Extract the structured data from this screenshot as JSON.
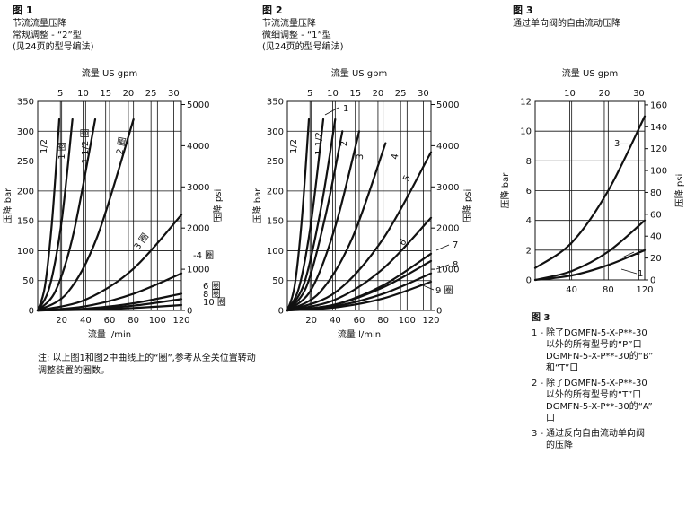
{
  "fig1": {
    "heading": "图 1",
    "lines": [
      "节流流量压降",
      "常规调整 - “2”型",
      "(见24页的型号编法)"
    ]
  },
  "fig2": {
    "heading": "图 2",
    "lines": [
      "节流流量压降",
      "微细调整 - “1”型",
      "(见24页的型号编法)"
    ]
  },
  "fig3": {
    "heading": "图 3",
    "lines": [
      "通过单向阀的自由流动压降"
    ]
  },
  "footnote": [
    "注: 以上图1和图2中曲线上的“圈”,参考从全关位置转动",
    "调整装置的圈数。"
  ],
  "fig3_legend": {
    "title": "图 3",
    "items": [
      {
        "num": "1 -",
        "lines": [
          "除了DGMFN-5-X-P**-30",
          "以外的所有型号的“P”口",
          "DGMFN-5-X-P**-30的“B”",
          "和“T”口"
        ]
      },
      {
        "num": "2 -",
        "lines": [
          "除了DGMFN-5-X-P**-30",
          "以外的所有型号的“T”口",
          "DGMFN-5-X-P**-30的“A”",
          "口"
        ]
      },
      {
        "num": "3 -",
        "lines": [
          "通过反向自由流动单向阀",
          "的压降"
        ]
      }
    ]
  },
  "chart_data": [
    {
      "type": "line",
      "xlabel": "流量 l/min",
      "x2label": "流量 US gpm",
      "ylabel": "压降 bar",
      "y2label": "压降 psi",
      "xlim": [
        0,
        120
      ],
      "ylim": [
        0,
        350
      ],
      "xticks": [
        "20",
        "40",
        "60",
        "80",
        "100",
        "120"
      ],
      "x2ticks": [
        "5",
        "10",
        "15",
        "20",
        "25",
        "30"
      ],
      "yticks": [
        "0",
        "50",
        "100",
        "150",
        "200",
        "250",
        "300",
        "350"
      ],
      "y2ticks": [
        "0",
        "1000",
        "2000",
        "3000",
        "4000",
        "5000"
      ],
      "grid": true,
      "series": [
        {
          "name": "1/2 圈",
          "x": [
            0,
            6,
            12,
            18
          ],
          "y": [
            0,
            40,
            150,
            320
          ]
        },
        {
          "name": "1 圈",
          "x": [
            0,
            10,
            20,
            29
          ],
          "y": [
            0,
            40,
            150,
            320
          ]
        },
        {
          "name": "1 1/2 圈",
          "x": [
            0,
            15,
            30,
            48
          ],
          "y": [
            0,
            33,
            130,
            320
          ]
        },
        {
          "name": "2 圈",
          "x": [
            0,
            25,
            50,
            80
          ],
          "y": [
            0,
            30,
            125,
            320
          ]
        },
        {
          "name": "3 圈",
          "x": [
            0,
            40,
            80,
            120
          ],
          "y": [
            0,
            18,
            70,
            160
          ]
        },
        {
          "name": "4 圈",
          "x": [
            0,
            40,
            80,
            120
          ],
          "y": [
            0,
            7,
            28,
            62
          ]
        },
        {
          "name": "6 圈",
          "x": [
            0,
            40,
            80,
            120
          ],
          "y": [
            0,
            3,
            12,
            28
          ]
        },
        {
          "name": "8 圈",
          "x": [
            0,
            40,
            80,
            120
          ],
          "y": [
            0,
            2,
            8,
            19
          ]
        },
        {
          "name": "10 圈",
          "x": [
            0,
            40,
            80,
            120
          ],
          "y": [
            0,
            1,
            4,
            9
          ]
        }
      ]
    },
    {
      "type": "line",
      "xlabel": "流量 l/min",
      "x2label": "流量 US gpm",
      "ylabel": "压降 bar",
      "y2label": "压降 psi",
      "xlim": [
        0,
        120
      ],
      "ylim": [
        0,
        350
      ],
      "xticks": [
        "20",
        "40",
        "60",
        "80",
        "100",
        "120"
      ],
      "x2ticks": [
        "5",
        "10",
        "15",
        "20",
        "25",
        "30"
      ],
      "yticks": [
        "0",
        "50",
        "100",
        "150",
        "200",
        "250",
        "300",
        "350"
      ],
      "y2ticks": [
        "0",
        "1000",
        "2000",
        "3000",
        "4000",
        "5000"
      ],
      "grid": true,
      "series": [
        {
          "name": "1/2",
          "x": [
            0,
            6,
            12,
            18
          ],
          "y": [
            0,
            40,
            150,
            320
          ]
        },
        {
          "name": "1",
          "x": [
            0,
            10,
            20,
            30
          ],
          "y": [
            0,
            40,
            150,
            320
          ]
        },
        {
          "name": "1 1/2",
          "x": [
            0,
            14,
            28,
            40
          ],
          "y": [
            0,
            45,
            170,
            320
          ]
        },
        {
          "name": "2",
          "x": [
            0,
            16,
            32,
            46
          ],
          "y": [
            0,
            40,
            160,
            300
          ]
        },
        {
          "name": "3",
          "x": [
            0,
            20,
            40,
            60
          ],
          "y": [
            0,
            35,
            140,
            300
          ]
        },
        {
          "name": "4",
          "x": [
            0,
            27,
            54,
            82
          ],
          "y": [
            0,
            30,
            120,
            280
          ]
        },
        {
          "name": "5",
          "x": [
            0,
            40,
            80,
            120
          ],
          "y": [
            0,
            30,
            120,
            265
          ]
        },
        {
          "name": "6",
          "x": [
            0,
            40,
            80,
            120
          ],
          "y": [
            0,
            18,
            70,
            155
          ]
        },
        {
          "name": "7",
          "x": [
            0,
            40,
            80,
            120
          ],
          "y": [
            0,
            10,
            42,
            95
          ]
        },
        {
          "name": "8",
          "x": [
            0,
            40,
            80,
            120
          ],
          "y": [
            0,
            7,
            28,
            62
          ]
        },
        {
          "name": "9",
          "x": [
            0,
            40,
            80,
            120
          ],
          "y": [
            0,
            5,
            20,
            48
          ]
        }
      ],
      "psi_series": {
        "name": "9 圈",
        "x": [
          0,
          40,
          80,
          120
        ],
        "y": [
          0,
          140,
          560,
          1200
        ]
      }
    },
    {
      "type": "line",
      "xlabel": "",
      "x2label": "流量 US gpm",
      "ylabel": "压降 bar",
      "y2label": "压降 psi",
      "xlim": [
        0,
        120
      ],
      "ylim": [
        0,
        12
      ],
      "xticks": [
        "40",
        "80",
        "120"
      ],
      "x2ticks": [
        "10",
        "20",
        "30"
      ],
      "yticks": [
        "0",
        "2",
        "4",
        "6",
        "8",
        "10",
        "12"
      ],
      "y2ticks": [
        "0",
        "20",
        "40",
        "60",
        "80",
        "100",
        "120",
        "140",
        "160"
      ],
      "grid": true,
      "series": [
        {
          "name": "1",
          "x": [
            0,
            40,
            80,
            120
          ],
          "y": [
            0,
            0.3,
            1.0,
            2.0
          ]
        },
        {
          "name": "2",
          "x": [
            0,
            40,
            80,
            120
          ],
          "y": [
            0,
            0.6,
            1.9,
            4.0
          ]
        },
        {
          "name": "3",
          "x": [
            0,
            40,
            80,
            120
          ],
          "y": [
            0.8,
            2.5,
            6.0,
            11.0
          ]
        }
      ]
    }
  ]
}
